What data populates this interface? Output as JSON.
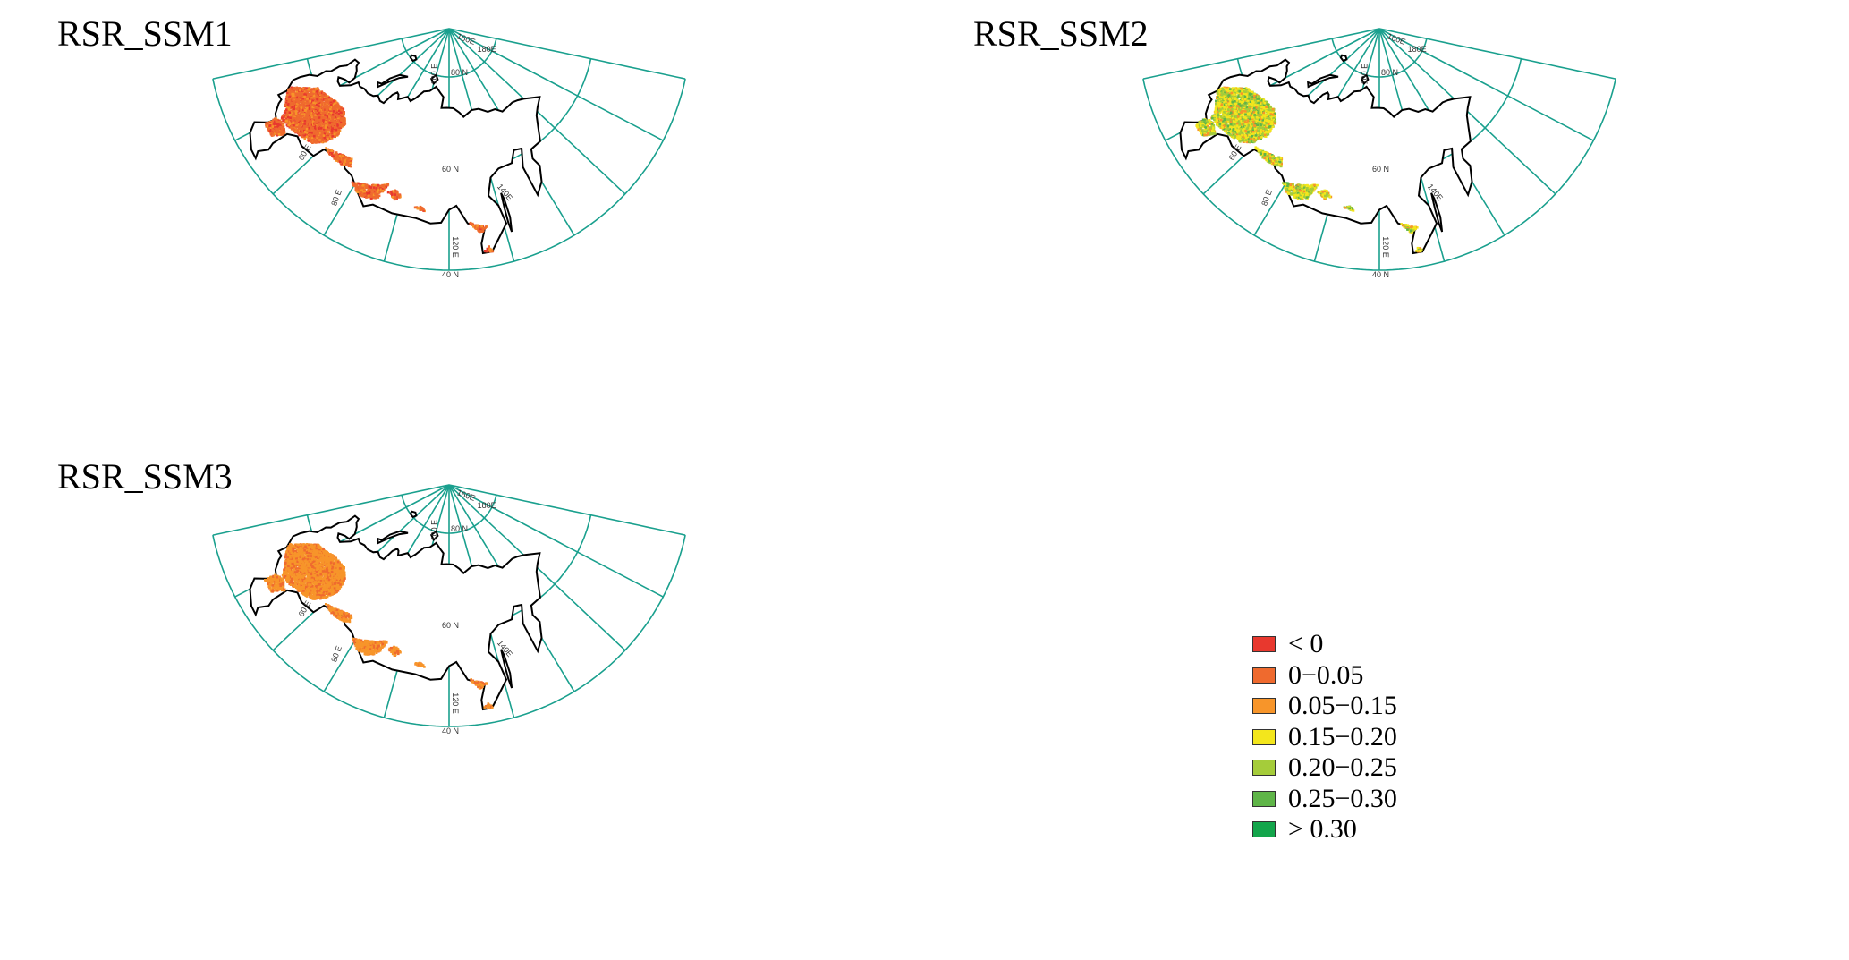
{
  "maps": [
    {
      "id": "ssm1",
      "title": "RSR_SSM1",
      "dominant": "0–0.05",
      "dominant_color": "#ef6a2e"
    },
    {
      "id": "ssm2",
      "title": "RSR_SSM2",
      "dominant": "0.15–0.20",
      "dominant_color": "#f3e61c"
    },
    {
      "id": "ssm3",
      "title": "RSR_SSM3",
      "dominant": "0.05–0.15",
      "dominant_color": "#f7952a"
    }
  ],
  "grid_labels": {
    "lat_80": "80 N",
    "lat_60": "60 N",
    "lat_40": "40 N",
    "lon_180": "180E",
    "lon_160": "160E",
    "lon_140": "140E",
    "lon_120": "120 E",
    "lon_100": "100 E",
    "lon_80": "80 E",
    "lon_60": "60 E"
  },
  "legend": {
    "items": [
      {
        "label": "< 0",
        "color": "#e8382e"
      },
      {
        "label": "0−0.05",
        "color": "#ef6a2e"
      },
      {
        "label": "0.05−0.15",
        "color": "#f7952a"
      },
      {
        "label": "0.15−0.20",
        "color": "#f3e61c"
      },
      {
        "label": "0.20−0.25",
        "color": "#a5cc3a"
      },
      {
        "label": "0.25−0.30",
        "color": "#5fb548"
      },
      {
        "label": "> 0.30",
        "color": "#13a54b"
      }
    ]
  },
  "colors": {
    "graticule": "#1aa08e",
    "coast": "#000000"
  }
}
